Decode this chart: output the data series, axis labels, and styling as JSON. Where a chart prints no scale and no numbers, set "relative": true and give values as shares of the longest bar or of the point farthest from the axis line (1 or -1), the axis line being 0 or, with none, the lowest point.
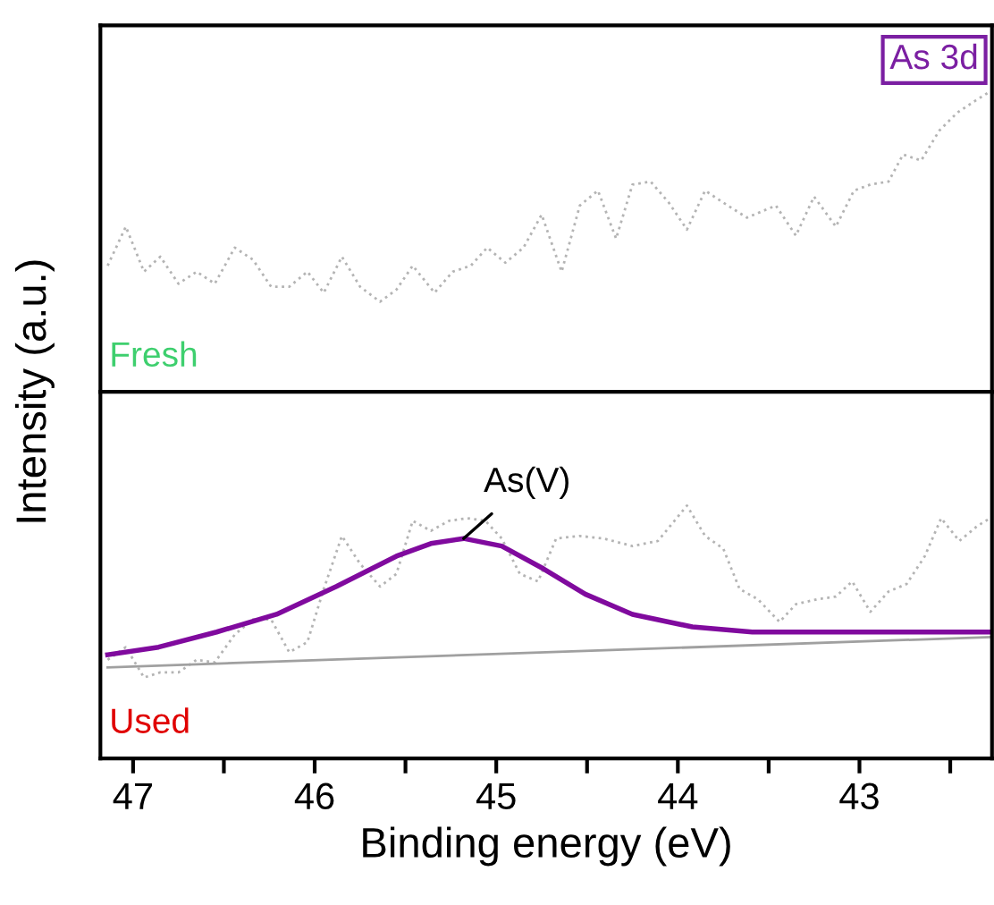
{
  "chart_data": [
    {
      "type": "line",
      "relative": true,
      "tick_labels": false,
      "xlim": [
        47.18,
        42.27
      ],
      "ylabel": "Intensity (a.u.)",
      "annotations": [
        "As 3d",
        "Fresh"
      ],
      "series": [
        {
          "color": "#b4b4b4",
          "line_style": "dotted",
          "x": [
            47.14,
            47.04,
            46.94,
            46.85,
            46.75,
            46.65,
            46.55,
            46.44,
            46.34,
            46.24,
            46.14,
            46.04,
            45.95,
            45.85,
            45.75,
            45.64,
            45.55,
            45.46,
            45.34,
            45.24,
            45.14,
            45.05,
            44.95,
            44.85,
            44.75,
            44.64,
            44.54,
            44.44,
            44.34,
            44.25,
            44.15,
            44.05,
            43.95,
            43.85,
            43.75,
            43.62,
            43.46,
            43.35,
            43.25,
            43.13,
            43.03,
            42.94,
            42.84,
            42.76,
            42.66,
            42.56,
            42.46,
            42.36,
            42.28
          ],
          "values": [
            0.42,
            0.55,
            0.4,
            0.45,
            0.36,
            0.4,
            0.36,
            0.48,
            0.44,
            0.35,
            0.35,
            0.4,
            0.33,
            0.45,
            0.35,
            0.3,
            0.34,
            0.42,
            0.33,
            0.4,
            0.42,
            0.48,
            0.43,
            0.48,
            0.59,
            0.4,
            0.62,
            0.67,
            0.51,
            0.69,
            0.7,
            0.63,
            0.54,
            0.67,
            0.63,
            0.58,
            0.62,
            0.52,
            0.65,
            0.55,
            0.67,
            0.69,
            0.7,
            0.79,
            0.77,
            0.87,
            0.93,
            0.97,
            1
          ]
        }
      ]
    },
    {
      "type": "line",
      "relative": true,
      "tick_labels": "x",
      "xlim": [
        47.18,
        42.27
      ],
      "xlabel": "Binding energy (eV)",
      "xticks": [
        47,
        {
          "value": 46.5,
          "label": null
        },
        46,
        {
          "value": 45.5,
          "label": null
        },
        45,
        {
          "value": 44.5,
          "label": null
        },
        44,
        {
          "value": 43.5,
          "label": null
        },
        43,
        {
          "value": 42.5,
          "label": null
        }
      ],
      "annotations": [
        {
          "text": "As(V)",
          "x": 45.18,
          "y": 0.87
        },
        "Used"
      ],
      "series": [
        {
          "color": "#b4b4b4",
          "line_style": "dotted",
          "x": [
            47.14,
            47.04,
            46.94,
            46.85,
            46.75,
            46.65,
            46.55,
            46.44,
            46.34,
            46.24,
            46.14,
            46.04,
            45.95,
            45.85,
            45.75,
            45.64,
            45.55,
            45.46,
            45.36,
            45.26,
            45.16,
            45.06,
            44.97,
            44.87,
            44.77,
            44.67,
            44.54,
            44.41,
            44.25,
            44.11,
            43.95,
            43.85,
            43.75,
            43.66,
            43.56,
            43.44,
            43.35,
            43.23,
            43.13,
            43.04,
            42.94,
            42.84,
            42.74,
            42.64,
            42.55,
            42.45,
            42.35,
            42.28
          ],
          "values": [
            0.39,
            0.44,
            0.32,
            0.34,
            0.34,
            0.39,
            0.38,
            0.49,
            0.55,
            0.55,
            0.42,
            0.46,
            0.67,
            0.88,
            0.77,
            0.68,
            0.73,
            0.94,
            0.9,
            0.94,
            0.95,
            0.94,
            0.87,
            0.73,
            0.7,
            0.87,
            0.88,
            0.87,
            0.84,
            0.86,
            1,
            0.88,
            0.83,
            0.67,
            0.63,
            0.54,
            0.61,
            0.63,
            0.64,
            0.7,
            0.58,
            0.66,
            0.69,
            0.8,
            0.95,
            0.86,
            0.92,
            0.95
          ]
        },
        {
          "color": "#800a9e",
          "line_style": "solid",
          "x": [
            47.14,
            46.86,
            46.54,
            46.21,
            45.88,
            45.55,
            45.36,
            45.18,
            44.97,
            44.74,
            44.51,
            44.25,
            43.92,
            43.59,
            43.26,
            42.77,
            42.28
          ],
          "values": [
            0.41,
            0.44,
            0.5,
            0.57,
            0.68,
            0.8,
            0.85,
            0.87,
            0.84,
            0.75,
            0.65,
            0.57,
            0.52,
            0.5,
            0.5,
            0.5,
            0.5
          ]
        },
        {
          "color": "#a0a0a0",
          "line_style": "solid",
          "x": [
            47.14,
            42.28
          ],
          "values": [
            0.36,
            0.48
          ]
        }
      ]
    }
  ]
}
